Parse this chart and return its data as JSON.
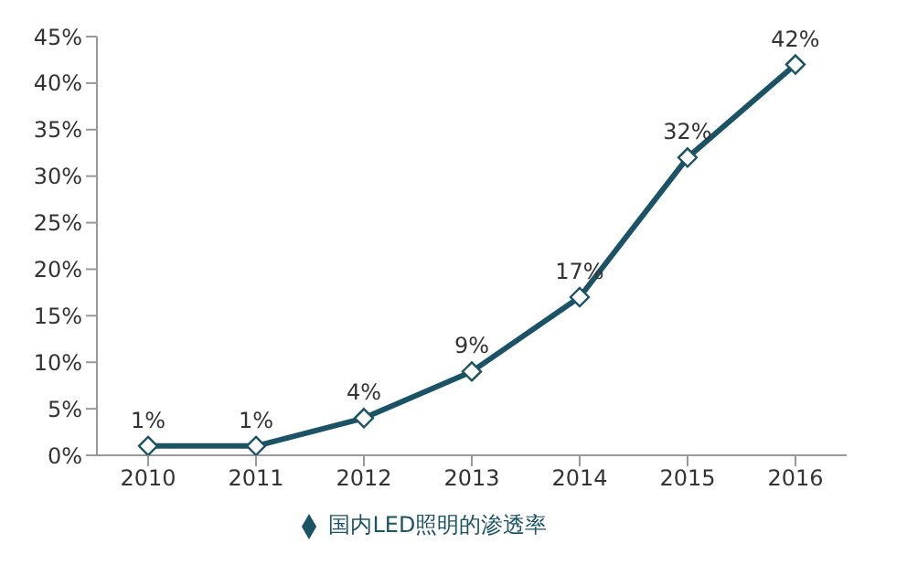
{
  "chart_data": {
    "type": "line",
    "categories": [
      "2010",
      "2011",
      "2012",
      "2013",
      "2014",
      "2015",
      "2016"
    ],
    "series": [
      {
        "name": "国内LED照明的渗透率",
        "color": "#1b5366",
        "values": [
          1,
          1,
          4,
          9,
          17,
          32,
          42
        ],
        "value_labels": [
          "1%",
          "1%",
          "4%",
          "9%",
          "17%",
          "32%",
          "42%"
        ]
      }
    ],
    "ylim": [
      0,
      45
    ],
    "yticks": [
      {
        "value": 0,
        "label": "0%"
      },
      {
        "value": 5,
        "label": "5%"
      },
      {
        "value": 10,
        "label": "10%"
      },
      {
        "value": 15,
        "label": "15%"
      },
      {
        "value": 20,
        "label": "20%"
      },
      {
        "value": 25,
        "label": "25%"
      },
      {
        "value": 30,
        "label": "30%"
      },
      {
        "value": 35,
        "label": "35%"
      },
      {
        "value": 40,
        "label": "40%"
      },
      {
        "value": 45,
        "label": "45%"
      }
    ],
    "grid": false,
    "legend": "bottom",
    "marker": "diamond",
    "line_style": "solid"
  }
}
